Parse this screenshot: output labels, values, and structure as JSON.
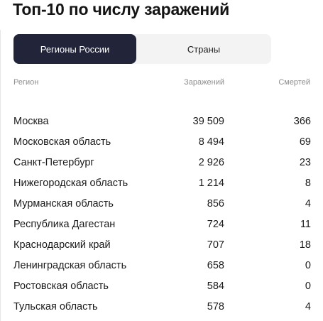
{
  "title": "Топ-10 по числу заражений",
  "tabs": [
    {
      "label": "Регионы России",
      "active": true
    },
    {
      "label": "Страны",
      "active": false
    }
  ],
  "table": {
    "headers": {
      "region": "Регион",
      "infections": "Заражений",
      "deaths": "Смертей"
    },
    "rows": [
      {
        "region": "Москва",
        "infections": "39 509",
        "deaths": "366"
      },
      {
        "region": "Московская область",
        "infections": "8 494",
        "deaths": "69"
      },
      {
        "region": "Санкт-Петербург",
        "infections": "2 926",
        "deaths": "23"
      },
      {
        "region": "Нижегородская область",
        "infections": "1 214",
        "deaths": "8"
      },
      {
        "region": "Мурманская область",
        "infections": "856",
        "deaths": "4"
      },
      {
        "region": "Республика Дагестан",
        "infections": "724",
        "deaths": "11"
      },
      {
        "region": "Краснодарский край",
        "infections": "707",
        "deaths": "18"
      },
      {
        "region": "Ленинградская область",
        "infections": "658",
        "deaths": "0"
      },
      {
        "region": "Ростовская область",
        "infections": "584",
        "deaths": "0"
      },
      {
        "region": "Тульская область",
        "infections": "578",
        "deaths": "4"
      }
    ]
  },
  "colors": {
    "active_tab_bg": "#22243a",
    "tab_track_bg": "#f3f3f3",
    "header_text": "#8d8d8d"
  }
}
